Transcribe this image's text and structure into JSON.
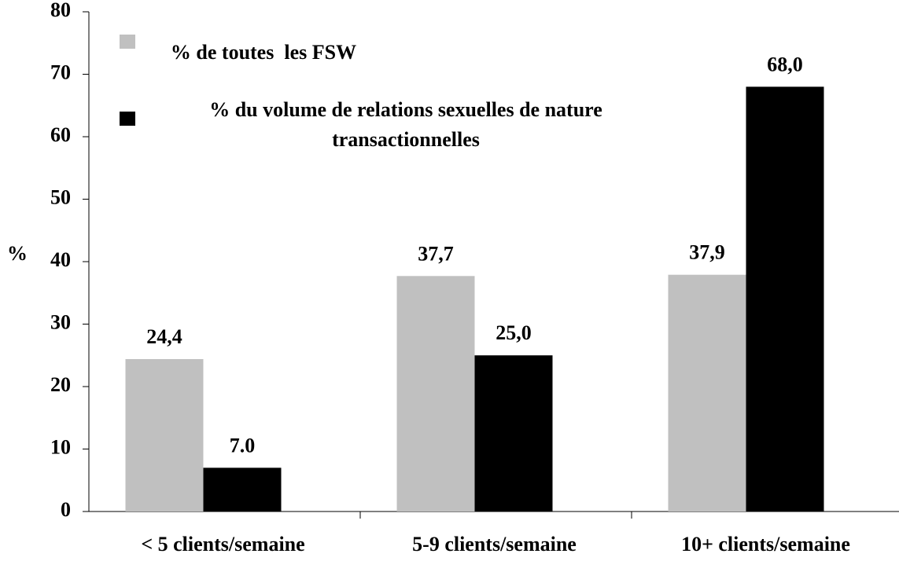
{
  "chart_data": {
    "type": "bar",
    "y_label": "%",
    "categories": [
      "< 5 clients/semaine",
      "5-9 clients/semaine",
      "10+ clients/semaine"
    ],
    "series": [
      {
        "name": "% de toutes  les FSW",
        "color": "#c0c0c0",
        "values": [
          24.4,
          37.7,
          37.9
        ],
        "value_labels": [
          "24,4",
          "37,7",
          "37,9"
        ]
      },
      {
        "name": "% du volume de relations sexuelles de nature transactionnelles",
        "color": "#000000",
        "values": [
          7,
          25,
          68
        ],
        "value_labels": [
          "7.0",
          "25,0",
          "68,0"
        ]
      }
    ],
    "ylim": [
      0,
      80
    ],
    "yticks": [
      0,
      10,
      20,
      30,
      40,
      50,
      60,
      70,
      80
    ],
    "grid": false,
    "legend": "top-left"
  }
}
